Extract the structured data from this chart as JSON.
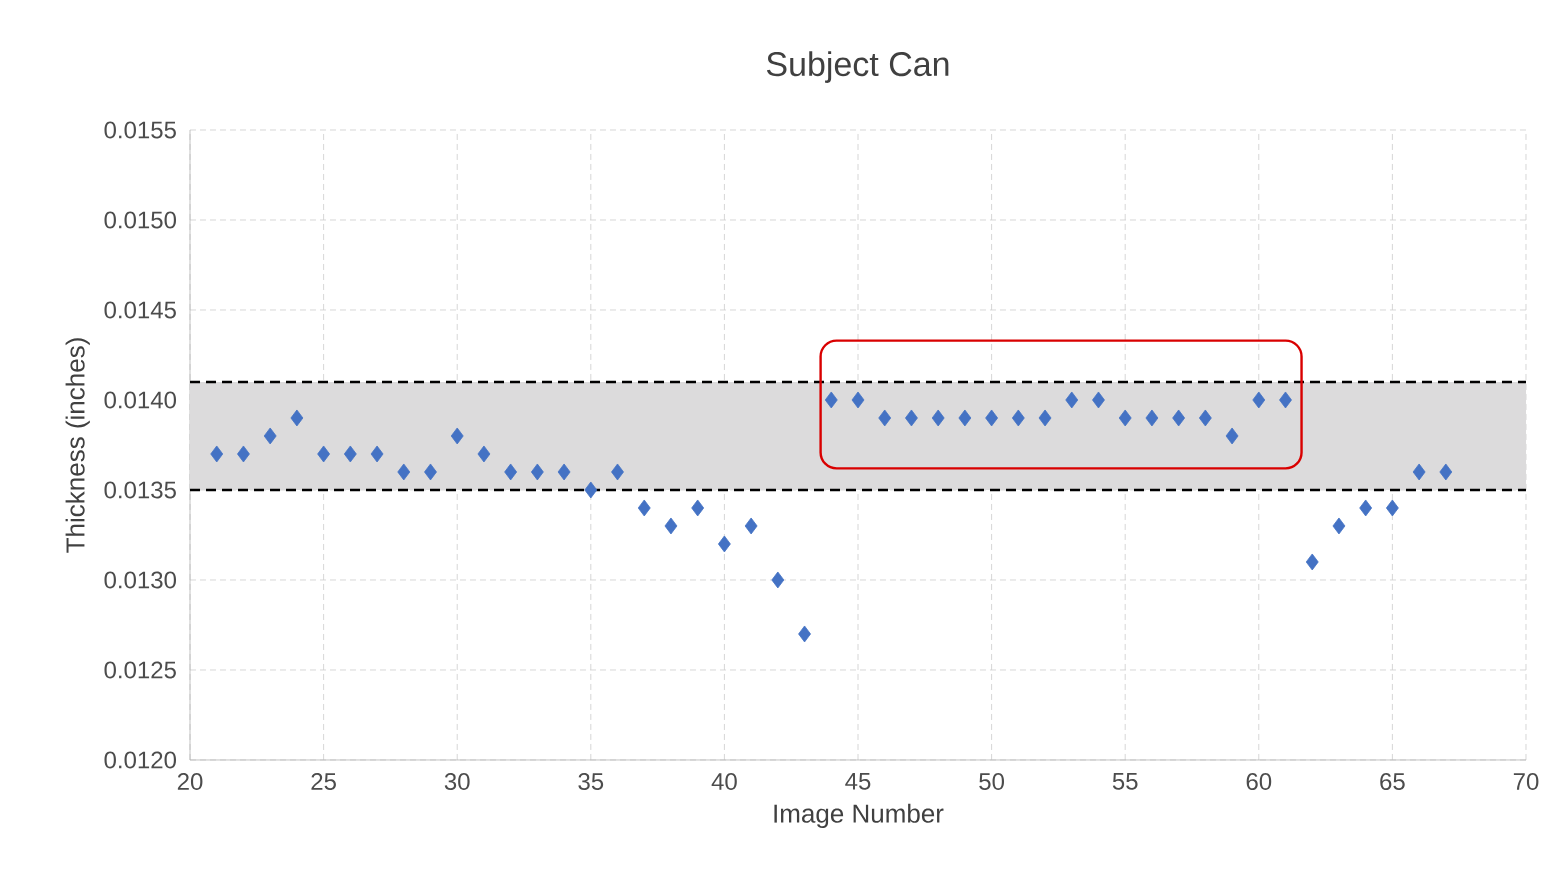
{
  "chart_data": {
    "type": "scatter",
    "title": "Subject Can",
    "xlabel": "Image Number",
    "ylabel": "Thickness (inches)",
    "x": [
      21,
      22,
      23,
      24,
      25,
      26,
      27,
      28,
      29,
      30,
      31,
      32,
      33,
      34,
      35,
      36,
      37,
      38,
      39,
      40,
      41,
      42,
      43,
      44,
      45,
      46,
      47,
      48,
      49,
      50,
      51,
      52,
      53,
      54,
      55,
      56,
      57,
      58,
      59,
      60,
      61,
      62,
      63,
      64,
      65,
      66,
      67
    ],
    "series": [
      {
        "color": "#4472c4",
        "values": [
          0.0137,
          0.0137,
          0.0138,
          0.0139,
          0.0137,
          0.0137,
          0.0137,
          0.0136,
          0.0136,
          0.0138,
          0.0137,
          0.0136,
          0.0136,
          0.0136,
          0.0135,
          0.0136,
          0.0134,
          0.0133,
          0.0134,
          0.0132,
          0.0133,
          0.013,
          0.0127,
          0.014,
          0.014,
          0.0139,
          0.0139,
          0.0139,
          0.0139,
          0.0139,
          0.0139,
          0.0139,
          0.014,
          0.014,
          0.0139,
          0.0139,
          0.0139,
          0.0139,
          0.0138,
          0.014,
          0.014,
          0.0131,
          0.0133,
          0.0134,
          0.0134,
          0.0136,
          0.0136
        ]
      }
    ],
    "xlim": [
      20,
      70
    ],
    "xticks": [
      20,
      25,
      30,
      35,
      40,
      45,
      50,
      55,
      60,
      65,
      70
    ],
    "ylim": [
      0.012,
      0.0155
    ],
    "yticks": [
      {
        "value": 0.012,
        "label": "0.0120"
      },
      {
        "value": 0.0125,
        "label": "0.0125"
      },
      {
        "value": 0.013,
        "label": "0.0130"
      },
      {
        "value": 0.0135,
        "label": "0.0135"
      },
      {
        "value": 0.014,
        "label": "0.0140"
      },
      {
        "value": 0.0145,
        "label": "0.0145"
      },
      {
        "value": 0.015,
        "label": "0.0150"
      },
      {
        "value": 0.0155,
        "label": "0.0155"
      }
    ],
    "bands": [
      {
        "axis": "y",
        "from": 0.0135,
        "to": 0.0141,
        "color": "#dcdbdc"
      }
    ],
    "ref_lines": [
      {
        "axis": "y",
        "value": 0.0141,
        "color": "#000000",
        "line_style": "dashed"
      },
      {
        "axis": "y",
        "value": 0.0135,
        "color": "#000000",
        "line_style": "dashed"
      }
    ],
    "grid": true,
    "marker": "diamond"
  }
}
